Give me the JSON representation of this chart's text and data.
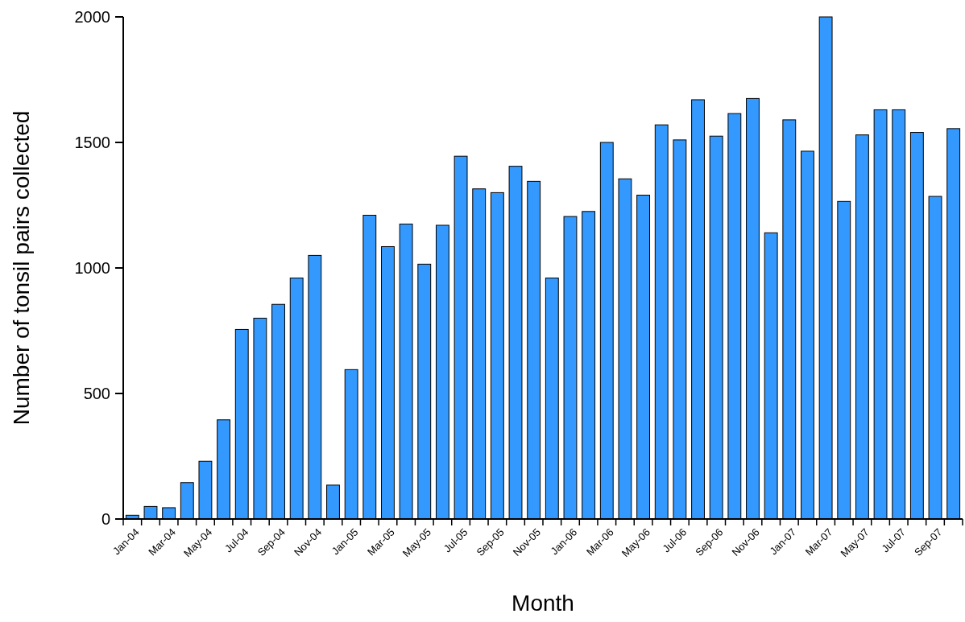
{
  "chart_data": {
    "type": "bar",
    "xlabel": "Month",
    "ylabel": "Number of tonsil pairs collected",
    "categories": [
      "Jan-04",
      null,
      "Mar-04",
      null,
      "May-04",
      null,
      "Jul-04",
      null,
      "Sep-04",
      null,
      "Nov-04",
      null,
      "Jan-05",
      null,
      "Mar-05",
      null,
      "May-05",
      null,
      "Jul-05",
      null,
      "Sep-05",
      null,
      "Nov-05",
      null,
      "Jan-06",
      null,
      "Mar-06",
      null,
      "May-06",
      null,
      "Jul-06",
      null,
      "Sep-06",
      null,
      "Nov-06",
      null,
      "Jan-07",
      null,
      "Mar-07",
      null,
      "May-07",
      null,
      "Jul-07",
      null,
      "Sep-07",
      null
    ],
    "values": [
      15,
      50,
      45,
      145,
      230,
      395,
      755,
      800,
      855,
      960,
      1050,
      135,
      595,
      1210,
      1085,
      1175,
      1015,
      1170,
      1445,
      1315,
      1300,
      1405,
      1345,
      960,
      1205,
      1225,
      1500,
      1355,
      1290,
      1570,
      1510,
      1670,
      1525,
      1615,
      1675,
      1140,
      1590,
      1465,
      2000,
      1265,
      1530,
      1630,
      1630,
      1540,
      1285,
      1555
    ],
    "color": "#3399ff",
    "ylim": [
      0,
      2000
    ],
    "yticks": [
      0,
      500,
      1000,
      1500,
      2000
    ],
    "grid": false
  }
}
